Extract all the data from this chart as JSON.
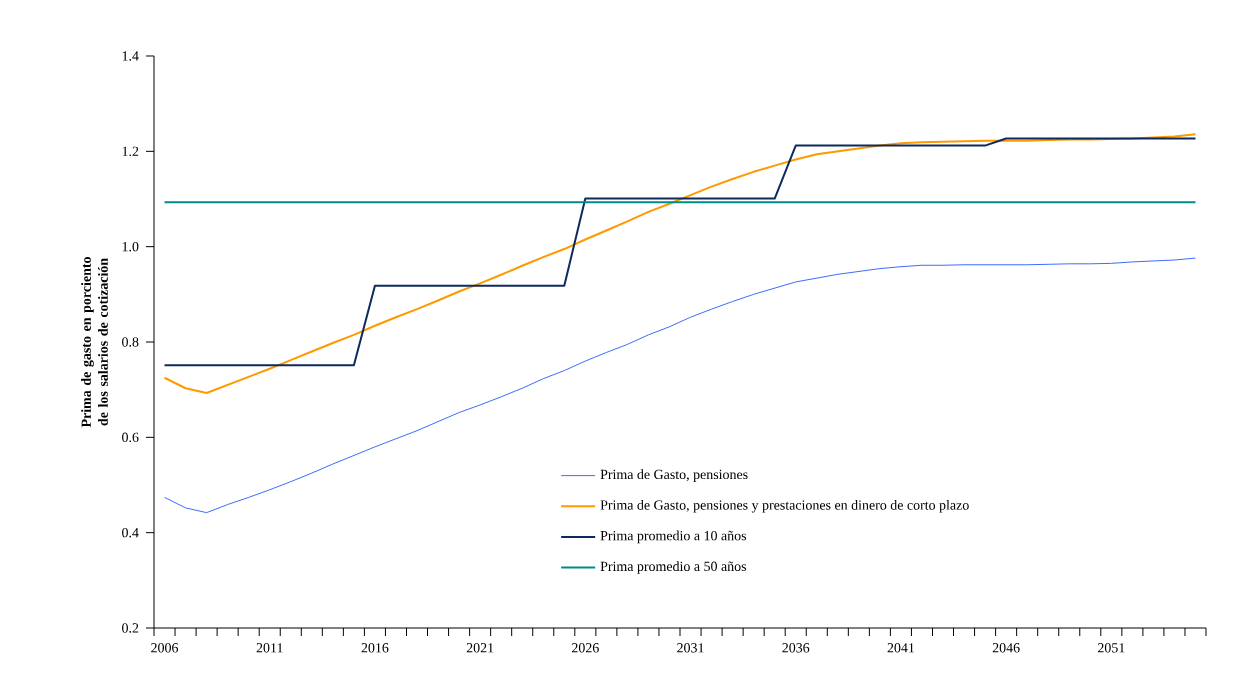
{
  "chart_data": {
    "type": "line",
    "ylabel": "Prima de gasto en porciento de los salarios de cotización",
    "x": [
      2006,
      2007,
      2008,
      2009,
      2010,
      2011,
      2012,
      2013,
      2014,
      2015,
      2016,
      2017,
      2018,
      2019,
      2020,
      2021,
      2022,
      2023,
      2024,
      2025,
      2026,
      2027,
      2028,
      2029,
      2030,
      2031,
      2032,
      2033,
      2034,
      2035,
      2036,
      2037,
      2038,
      2039,
      2040,
      2041,
      2042,
      2043,
      2044,
      2045,
      2046,
      2047,
      2048,
      2049,
      2050,
      2051,
      2052,
      2053,
      2054,
      2055
    ],
    "xlim": [
      2005.5,
      2055.5
    ],
    "xticks": [
      2006,
      2011,
      2016,
      2021,
      2026,
      2031,
      2036,
      2041,
      2046,
      2051
    ],
    "ylim": [
      0.2,
      1.4
    ],
    "yticks": [
      0.2,
      0.4,
      0.6,
      0.8,
      {
        "value": 1,
        "label": "1.0"
      },
      1.2,
      1.4
    ],
    "legend": "bottom",
    "grid": false,
    "series": [
      {
        "name": "Prima de Gasto, pensiones",
        "color": "#3d6bff",
        "values": [
          0.474,
          0.452,
          0.442,
          0.459,
          0.474,
          0.49,
          0.507,
          0.525,
          0.544,
          0.562,
          0.58,
          0.597,
          0.614,
          0.633,
          0.652,
          0.668,
          0.685,
          0.703,
          0.723,
          0.74,
          0.76,
          0.778,
          0.795,
          0.815,
          0.832,
          0.852,
          0.869,
          0.885,
          0.9,
          0.913,
          0.926,
          0.934,
          0.942,
          0.948,
          0.954,
          0.958,
          0.961,
          0.961,
          0.962,
          0.962,
          0.962,
          0.962,
          0.963,
          0.964,
          0.964,
          0.965,
          0.968,
          0.97,
          0.972,
          0.976
        ]
      },
      {
        "name": "Prima de Gasto, pensiones y prestaciones en dinero de corto plazo",
        "color": "#ff9900",
        "values": [
          0.725,
          0.703,
          0.693,
          0.71,
          0.727,
          0.744,
          0.762,
          0.78,
          0.798,
          0.815,
          0.834,
          0.852,
          0.869,
          0.887,
          0.906,
          0.923,
          0.941,
          0.96,
          0.978,
          0.995,
          1.015,
          1.034,
          1.053,
          1.073,
          1.09,
          1.108,
          1.126,
          1.142,
          1.157,
          1.17,
          1.183,
          1.194,
          1.2,
          1.206,
          1.212,
          1.217,
          1.219,
          1.22,
          1.221,
          1.222,
          1.222,
          1.222,
          1.224,
          1.225,
          1.225,
          1.226,
          1.227,
          1.229,
          1.231,
          1.236
        ]
      },
      {
        "name": "Prima promedio a 10 años",
        "color": "#0d2a5c",
        "values": [
          0.751,
          0.751,
          0.751,
          0.751,
          0.751,
          0.751,
          0.751,
          0.751,
          0.751,
          0.751,
          0.918,
          0.918,
          0.918,
          0.918,
          0.918,
          0.918,
          0.918,
          0.918,
          0.918,
          0.918,
          1.101,
          1.101,
          1.101,
          1.101,
          1.101,
          1.101,
          1.101,
          1.101,
          1.101,
          1.101,
          1.212,
          1.212,
          1.212,
          1.212,
          1.212,
          1.212,
          1.212,
          1.212,
          1.212,
          1.212,
          1.227,
          1.227,
          1.227,
          1.227,
          1.227,
          1.227,
          1.227,
          1.227,
          1.227,
          1.227
        ]
      },
      {
        "name": "Prima promedio a 50 años",
        "color": "#008b8b",
        "values": [
          1.093,
          1.093,
          1.093,
          1.093,
          1.093,
          1.093,
          1.093,
          1.093,
          1.093,
          1.093,
          1.093,
          1.093,
          1.093,
          1.093,
          1.093,
          1.093,
          1.093,
          1.093,
          1.093,
          1.093,
          1.093,
          1.093,
          1.093,
          1.093,
          1.093,
          1.093,
          1.093,
          1.093,
          1.093,
          1.093,
          1.093,
          1.093,
          1.093,
          1.093,
          1.093,
          1.093,
          1.093,
          1.093,
          1.093,
          1.093,
          1.093,
          1.093,
          1.093,
          1.093,
          1.093,
          1.093,
          1.093,
          1.093,
          1.093,
          1.093
        ]
      }
    ]
  }
}
